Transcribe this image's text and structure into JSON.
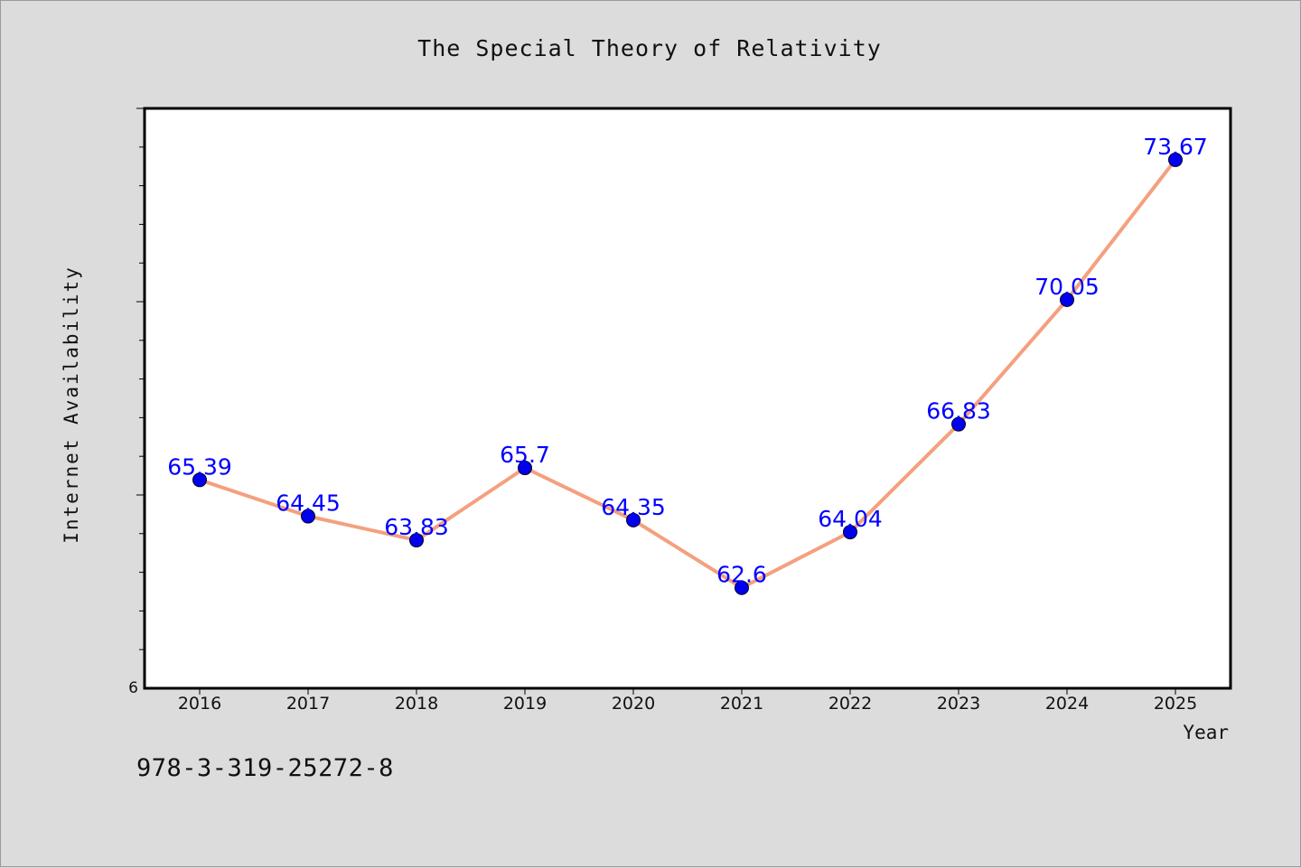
{
  "chart_data": {
    "type": "line",
    "title": "The Special Theory of Relativity",
    "xlabel": "Year",
    "ylabel": "Internet Availability",
    "categories": [
      "2016",
      "2017",
      "2018",
      "2019",
      "2020",
      "2021",
      "2022",
      "2023",
      "2024",
      "2025"
    ],
    "series": [
      {
        "values": [
          65.39,
          64.45,
          63.83,
          65.7,
          64.35,
          62.6,
          64.04,
          66.83,
          70.05,
          73.67
        ],
        "labels": [
          "65.39",
          "64.45",
          "63.83",
          "65.7",
          "64.35",
          "62.6",
          "64.04",
          "66.83",
          "70.05",
          "73.67"
        ]
      }
    ],
    "ylim": [
      60,
      75
    ],
    "ytick_labels": [
      "6"
    ],
    "grid": false,
    "line_color": "#f4a07f",
    "marker_color": "#0000ee",
    "label_color": "#0000ff"
  },
  "footer": {
    "isbn": "978-3-319-25272-8"
  }
}
